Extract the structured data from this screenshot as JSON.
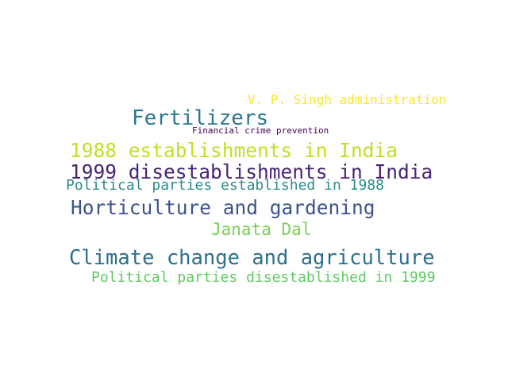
{
  "wordcloud": {
    "words": [
      {
        "text": "V. P. Singh administration",
        "color": "#fde725"
      },
      {
        "text": "Fertilizers",
        "color": "#2a788e"
      },
      {
        "text": "Financial crime prevention",
        "color": "#440154"
      },
      {
        "text": "1988 establishments in India",
        "color": "#c2df23"
      },
      {
        "text": "1999 disestablishments in India",
        "color": "#482475"
      },
      {
        "text": "Political parties established in 1988",
        "color": "#2c8c8c"
      },
      {
        "text": "Horticulture and gardening",
        "color": "#3b528b"
      },
      {
        "text": "Janata Dal",
        "color": "#7ad151"
      },
      {
        "text": "Climate change and agriculture",
        "color": "#2c6f8e"
      },
      {
        "text": "Political parties disestablished in 1999",
        "color": "#5ec962"
      }
    ]
  }
}
